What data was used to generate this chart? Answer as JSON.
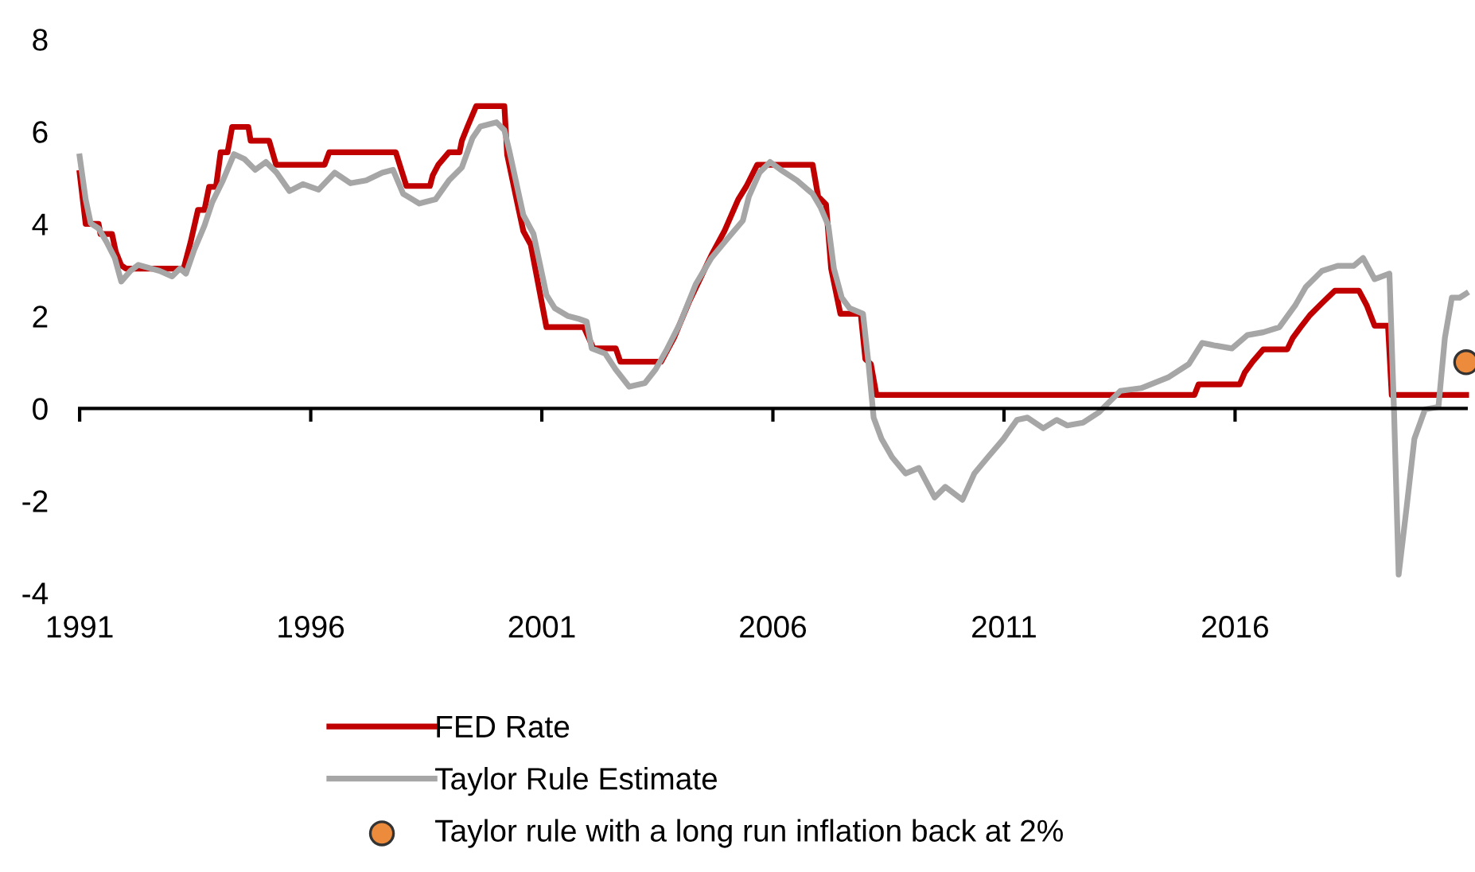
{
  "chart_data": {
    "type": "line",
    "xlim": [
      1991,
      2021
    ],
    "xticks": [
      1991,
      1996,
      2001,
      2006,
      2011,
      2016
    ],
    "ylim": [
      -4,
      8
    ],
    "yticks": [
      -4,
      -2,
      0,
      2,
      4,
      6,
      8
    ],
    "legend": "bottom",
    "line_style": "solid",
    "series": [
      {
        "name": "FED Rate",
        "color": "#c00000",
        "x": [
          1991.0,
          1991.13,
          1991.41,
          1991.45,
          1991.7,
          1991.78,
          1991.9,
          1992.0,
          1993.25,
          1993.4,
          1993.56,
          1993.7,
          1993.8,
          1993.95,
          1994.05,
          1994.2,
          1994.3,
          1994.65,
          1994.7,
          1995.1,
          1995.25,
          1996.3,
          1996.4,
          1997.84,
          1998.07,
          1998.58,
          1998.64,
          1998.76,
          1998.99,
          1999.22,
          1999.27,
          1999.39,
          1999.58,
          2000.19,
          2000.25,
          2000.48,
          2000.6,
          2000.76,
          2001.1,
          2001.91,
          2002.12,
          2002.6,
          2002.7,
          2003.58,
          2003.86,
          2004.2,
          2004.67,
          2004.95,
          2005.25,
          2005.43,
          2005.66,
          2006.86,
          2006.98,
          2007.15,
          2007.26,
          2007.46,
          2007.9,
          2008.0,
          2008.12,
          2008.24,
          2015.12,
          2015.21,
          2016.1,
          2016.21,
          2016.38,
          2016.61,
          2017.13,
          2017.25,
          2017.42,
          2017.62,
          2017.88,
          2018.16,
          2018.68,
          2018.85,
          2019.02,
          2019.31,
          2019.39,
          2021.0
        ],
        "values": [
          5.1,
          4.0,
          4.0,
          3.78,
          3.78,
          3.4,
          3.1,
          3.03,
          3.03,
          3.6,
          4.3,
          4.3,
          4.8,
          4.8,
          5.55,
          5.55,
          6.1,
          6.1,
          5.8,
          5.8,
          5.28,
          5.28,
          5.55,
          5.55,
          4.82,
          4.82,
          5.05,
          5.28,
          5.55,
          5.55,
          5.8,
          6.1,
          6.55,
          6.55,
          5.5,
          4.4,
          3.84,
          3.55,
          1.76,
          1.76,
          1.3,
          1.3,
          1.01,
          1.01,
          1.53,
          2.34,
          3.32,
          3.84,
          4.53,
          4.82,
          5.28,
          5.28,
          4.59,
          4.42,
          3.03,
          2.05,
          2.05,
          1.07,
          0.96,
          0.29,
          0.29,
          0.52,
          0.52,
          0.78,
          1.01,
          1.28,
          1.28,
          1.53,
          1.76,
          2.02,
          2.28,
          2.55,
          2.55,
          2.23,
          1.79,
          1.79,
          0.29,
          0.29
        ]
      },
      {
        "name": "Taylor Rule Estimate",
        "color": "#a6a6a6",
        "x": [
          1991.0,
          1991.13,
          1991.24,
          1991.41,
          1991.58,
          1991.76,
          1991.9,
          1992.1,
          1992.27,
          1992.73,
          1993.0,
          1993.17,
          1993.3,
          1993.48,
          1993.7,
          1993.87,
          1994.1,
          1994.34,
          1994.57,
          1994.8,
          1995.03,
          1995.26,
          1995.54,
          1995.83,
          1996.17,
          1996.52,
          1996.86,
          1997.2,
          1997.55,
          1997.78,
          1998.0,
          1998.35,
          1998.7,
          1998.99,
          1999.27,
          1999.5,
          1999.67,
          2000.02,
          2000.19,
          2000.3,
          2000.6,
          2000.82,
          2001.1,
          2001.28,
          2001.57,
          2001.8,
          2001.97,
          2002.08,
          2002.37,
          2002.6,
          2002.89,
          2003.23,
          2003.46,
          2003.69,
          2003.98,
          2004.33,
          2004.67,
          2005.01,
          2005.35,
          2005.48,
          2005.71,
          2005.94,
          2006.17,
          2006.52,
          2006.86,
          2007.03,
          2007.2,
          2007.32,
          2007.49,
          2007.66,
          2007.95,
          2008.07,
          2008.18,
          2008.35,
          2008.58,
          2008.87,
          2009.16,
          2009.5,
          2009.73,
          2010.1,
          2010.36,
          2010.65,
          2010.99,
          2011.28,
          2011.51,
          2011.85,
          2012.14,
          2012.37,
          2012.71,
          2013.06,
          2013.52,
          2013.97,
          2014.55,
          2015.0,
          2015.29,
          2015.58,
          2015.93,
          2016.27,
          2016.61,
          2016.96,
          2017.3,
          2017.53,
          2017.88,
          2018.22,
          2018.57,
          2018.77,
          2019.02,
          2019.34,
          2019.44,
          2019.54,
          2019.71,
          2019.88,
          2020.11,
          2020.4,
          2020.54,
          2020.69,
          2020.86,
          2021.0
        ],
        "values": [
          5.46,
          4.53,
          4.01,
          3.9,
          3.61,
          3.26,
          2.75,
          2.98,
          3.11,
          2.98,
          2.86,
          3.03,
          2.92,
          3.44,
          3.96,
          4.47,
          4.94,
          5.51,
          5.4,
          5.17,
          5.34,
          5.11,
          4.71,
          4.86,
          4.74,
          5.11,
          4.88,
          4.94,
          5.11,
          5.17,
          4.65,
          4.44,
          4.53,
          4.94,
          5.22,
          5.86,
          6.11,
          6.2,
          6.03,
          5.57,
          4.19,
          3.78,
          2.46,
          2.17,
          2.0,
          1.94,
          1.88,
          1.3,
          1.19,
          0.84,
          0.47,
          0.55,
          0.84,
          1.25,
          1.82,
          2.69,
          3.26,
          3.67,
          4.07,
          4.59,
          5.11,
          5.34,
          5.17,
          4.94,
          4.65,
          4.36,
          3.96,
          3.03,
          2.4,
          2.17,
          2.05,
          0.96,
          -0.2,
          -0.66,
          -1.06,
          -1.41,
          -1.29,
          -1.93,
          -1.7,
          -1.98,
          -1.41,
          -1.06,
          -0.66,
          -0.25,
          -0.2,
          -0.43,
          -0.25,
          -0.37,
          -0.31,
          -0.08,
          0.38,
          0.44,
          0.67,
          0.96,
          1.42,
          1.36,
          1.3,
          1.59,
          1.65,
          1.76,
          2.23,
          2.63,
          2.98,
          3.09,
          3.09,
          3.26,
          2.8,
          2.92,
          -0.08,
          -3.6,
          -2.16,
          -0.66,
          -0.02,
          0.03,
          1.53,
          2.4,
          2.4,
          2.49
        ]
      },
      {
        "name": "Taylor rule with a long run inflation back at 2%",
        "type": "scatter",
        "marker": "circle",
        "color": "#ed8b3d",
        "x": [
          2021.0
        ],
        "values": [
          1.0
        ]
      }
    ]
  }
}
